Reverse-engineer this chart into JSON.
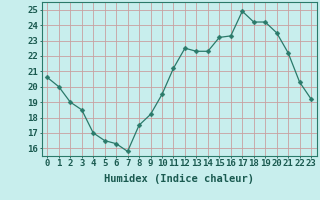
{
  "x": [
    0,
    1,
    2,
    3,
    4,
    5,
    6,
    7,
    8,
    9,
    10,
    11,
    12,
    13,
    14,
    15,
    16,
    17,
    18,
    19,
    20,
    21,
    22,
    23
  ],
  "y": [
    20.6,
    20.0,
    19.0,
    18.5,
    17.0,
    16.5,
    16.3,
    15.8,
    17.5,
    18.2,
    19.5,
    21.2,
    22.5,
    22.3,
    22.3,
    23.2,
    23.3,
    24.9,
    24.2,
    24.2,
    23.5,
    22.2,
    20.3,
    19.2
  ],
  "xlabel": "Humidex (Indice chaleur)",
  "ylim": [
    15.5,
    25.5
  ],
  "xlim": [
    -0.5,
    23.5
  ],
  "yticks": [
    16,
    17,
    18,
    19,
    20,
    21,
    22,
    23,
    24,
    25
  ],
  "xticks": [
    0,
    1,
    2,
    3,
    4,
    5,
    6,
    7,
    8,
    9,
    10,
    11,
    12,
    13,
    14,
    15,
    16,
    17,
    18,
    19,
    20,
    21,
    22,
    23
  ],
  "xtick_labels": [
    "0",
    "1",
    "2",
    "3",
    "4",
    "5",
    "6",
    "7",
    "8",
    "9",
    "10",
    "11",
    "12",
    "13",
    "14",
    "15",
    "16",
    "17",
    "18",
    "19",
    "20",
    "21",
    "22",
    "23"
  ],
  "line_color": "#2a7a6a",
  "marker": "D",
  "marker_size": 2.5,
  "bg_color": "#c8eeed",
  "grid_color": "#c8a0a0",
  "axes_color": "#2a7a6a",
  "tick_color": "#1a5a50",
  "label_color": "#1a5a50",
  "font_size_xlabel": 7.5,
  "font_size_tick": 6.5
}
